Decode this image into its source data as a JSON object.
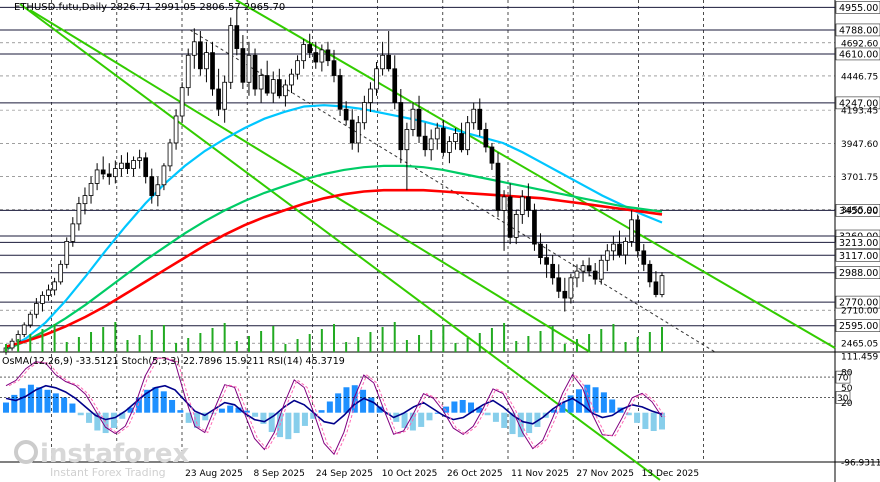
{
  "chart_data": [
    {
      "type": "candlestick",
      "symbol_line": "ETHUSD.futu,Daily  2826.71 2991.05 2806.57 2965.70",
      "x_ticks": [
        "23 Aug 2025",
        "8 Sep 2025",
        "24 Sep 2025",
        "10 Oct 2025",
        "26 Oct 2025",
        "11 Nov 2025",
        "27 Nov 2025",
        "13 Dec 2025"
      ],
      "y_range": [
        2400,
        5010
      ],
      "y_ticks": [
        "4692.60",
        "4446.75",
        "4193.45",
        "3947.60",
        "3701.75",
        "3455.90",
        "2710.00",
        "2465.05"
      ],
      "price_levels": [
        {
          "label": "4955.00",
          "value": 4955
        },
        {
          "label": "4788.00",
          "value": 4788
        },
        {
          "label": "4610.00",
          "value": 4610
        },
        {
          "label": "4247.00",
          "value": 4247
        },
        {
          "label": "3450.00",
          "value": 3450
        },
        {
          "label": "3260.00",
          "value": 3260
        },
        {
          "label": "3213.00",
          "value": 3213
        },
        {
          "label": "3117.00",
          "value": 3117
        },
        {
          "label": "2988.00",
          "value": 2988
        },
        {
          "label": "2770.00",
          "value": 2770
        },
        {
          "label": "2595.00",
          "value": 2595
        }
      ],
      "candles_ohlc": [
        [
          2400,
          2450,
          2380,
          2430
        ],
        [
          2430,
          2500,
          2410,
          2480
        ],
        [
          2480,
          2560,
          2460,
          2530
        ],
        [
          2530,
          2620,
          2510,
          2600
        ],
        [
          2600,
          2700,
          2580,
          2680
        ],
        [
          2680,
          2800,
          2650,
          2760
        ],
        [
          2760,
          2850,
          2700,
          2820
        ],
        [
          2820,
          2900,
          2780,
          2860
        ],
        [
          2860,
          2950,
          2820,
          2920
        ],
        [
          2920,
          3080,
          2900,
          3050
        ],
        [
          3050,
          3250,
          3020,
          3220
        ],
        [
          3220,
          3400,
          3180,
          3350
        ],
        [
          3350,
          3550,
          3300,
          3500
        ],
        [
          3500,
          3620,
          3420,
          3560
        ],
        [
          3560,
          3700,
          3500,
          3650
        ],
        [
          3650,
          3800,
          3600,
          3750
        ],
        [
          3750,
          3850,
          3680,
          3720
        ],
        [
          3720,
          3800,
          3640,
          3700
        ],
        [
          3700,
          3820,
          3650,
          3760
        ],
        [
          3760,
          3860,
          3700,
          3800
        ],
        [
          3800,
          3880,
          3720,
          3760
        ],
        [
          3760,
          3850,
          3700,
          3820
        ],
        [
          3820,
          3900,
          3760,
          3840
        ],
        [
          3840,
          3880,
          3650,
          3700
        ],
        [
          3700,
          3760,
          3500,
          3560
        ],
        [
          3560,
          3700,
          3480,
          3640
        ],
        [
          3640,
          3800,
          3600,
          3780
        ],
        [
          3780,
          3980,
          3740,
          3950
        ],
        [
          3950,
          4200,
          3900,
          4150
        ],
        [
          4150,
          4400,
          4100,
          4360
        ],
        [
          4360,
          4650,
          4300,
          4600
        ],
        [
          4600,
          4800,
          4500,
          4700
        ],
        [
          4700,
          4780,
          4450,
          4500
        ],
        [
          4500,
          4700,
          4400,
          4620
        ],
        [
          4620,
          4700,
          4300,
          4350
        ],
        [
          4350,
          4500,
          4150,
          4200
        ],
        [
          4200,
          4450,
          4100,
          4400
        ],
        [
          4400,
          4880,
          4350,
          4820
        ],
        [
          4820,
          4955,
          4600,
          4650
        ],
        [
          4650,
          4750,
          4350,
          4400
        ],
        [
          4400,
          4700,
          4300,
          4600
        ],
        [
          4600,
          4650,
          4300,
          4350
        ],
        [
          4350,
          4500,
          4250,
          4450
        ],
        [
          4450,
          4560,
          4300,
          4320
        ],
        [
          4320,
          4480,
          4250,
          4420
        ],
        [
          4420,
          4500,
          4280,
          4300
        ],
        [
          4300,
          4420,
          4220,
          4380
        ],
        [
          4380,
          4500,
          4320,
          4460
        ],
        [
          4460,
          4600,
          4420,
          4560
        ],
        [
          4560,
          4720,
          4500,
          4680
        ],
        [
          4680,
          4760,
          4580,
          4620
        ],
        [
          4620,
          4700,
          4500,
          4550
        ],
        [
          4550,
          4680,
          4480,
          4640
        ],
        [
          4640,
          4700,
          4520,
          4560
        ],
        [
          4560,
          4640,
          4400,
          4450
        ],
        [
          4450,
          4500,
          4150,
          4200
        ],
        [
          4200,
          4260,
          4080,
          4120
        ],
        [
          4120,
          4200,
          3900,
          3950
        ],
        [
          3950,
          4150,
          3880,
          4100
        ],
        [
          4100,
          4300,
          4050,
          4250
        ],
        [
          4250,
          4400,
          4180,
          4350
        ],
        [
          4350,
          4550,
          4300,
          4500
        ],
        [
          4500,
          4700,
          4450,
          4600
        ],
        [
          4600,
          4780,
          4480,
          4500
        ],
        [
          4500,
          4600,
          4200,
          4250
        ],
        [
          4250,
          4350,
          3800,
          3900
        ],
        [
          3900,
          4100,
          3600,
          4050
        ],
        [
          4050,
          4250,
          4000,
          4200
        ],
        [
          4200,
          4300,
          3950,
          4000
        ],
        [
          4000,
          4100,
          3850,
          3900
        ],
        [
          3900,
          4050,
          3820,
          3980
        ],
        [
          3980,
          4100,
          3900,
          4060
        ],
        [
          4060,
          4120,
          3850,
          3880
        ],
        [
          3880,
          4000,
          3800,
          3960
        ],
        [
          3960,
          4060,
          3900,
          4020
        ],
        [
          4020,
          4100,
          3880,
          3900
        ],
        [
          3900,
          4150,
          3860,
          4100
        ],
        [
          4100,
          4250,
          4050,
          4200
        ],
        [
          4200,
          4280,
          4000,
          4050
        ],
        [
          4050,
          4100,
          3880,
          3920
        ],
        [
          3920,
          3950,
          3750,
          3800
        ],
        [
          3800,
          3880,
          3400,
          3450
        ],
        [
          3450,
          3600,
          3150,
          3550
        ],
        [
          3550,
          3650,
          3200,
          3250
        ],
        [
          3250,
          3450,
          3200,
          3420
        ],
        [
          3420,
          3600,
          3350,
          3550
        ],
        [
          3550,
          3650,
          3400,
          3450
        ],
        [
          3450,
          3500,
          3150,
          3200
        ],
        [
          3200,
          3280,
          3050,
          3100
        ],
        [
          3100,
          3200,
          2950,
          3050
        ],
        [
          3050,
          3120,
          2900,
          2950
        ],
        [
          2950,
          3050,
          2800,
          2850
        ],
        [
          2850,
          2950,
          2700,
          2800
        ],
        [
          2800,
          2980,
          2760,
          2950
        ],
        [
          2950,
          3050,
          2880,
          3000
        ],
        [
          3000,
          3080,
          2920,
          3040
        ],
        [
          3040,
          3100,
          2960,
          3000
        ],
        [
          3000,
          3060,
          2900,
          2940
        ],
        [
          2940,
          3120,
          2900,
          3080
        ],
        [
          3080,
          3200,
          3000,
          3150
        ],
        [
          3150,
          3260,
          3080,
          3200
        ],
        [
          3200,
          3300,
          3100,
          3120
        ],
        [
          3120,
          3250,
          3050,
          3220
        ],
        [
          3220,
          3450,
          3180,
          3380
        ],
        [
          3380,
          3420,
          3100,
          3150
        ],
        [
          3150,
          3200,
          3000,
          3050
        ],
        [
          3050,
          3080,
          2880,
          2920
        ],
        [
          2920,
          3000,
          2806,
          2826
        ],
        [
          2826,
          2991,
          2806,
          2966
        ]
      ],
      "moving_averages": [
        {
          "color": "#00c6ff",
          "values": [
            2420,
            2500,
            2620,
            2780,
            2960,
            3150,
            3330,
            3500,
            3650,
            3780,
            3890,
            3980,
            4060,
            4130,
            4180,
            4220,
            4230,
            4220,
            4200,
            4170,
            4140,
            4110,
            4070,
            4030,
            3990,
            3950,
            3880,
            3800,
            3720,
            3640,
            3560,
            3490,
            3420,
            3360
          ]
        },
        {
          "color": "#00cc66",
          "values": [
            2420,
            2480,
            2560,
            2650,
            2750,
            2860,
            2970,
            3080,
            3180,
            3280,
            3370,
            3450,
            3520,
            3580,
            3630,
            3680,
            3720,
            3750,
            3770,
            3780,
            3780,
            3770,
            3750,
            3720,
            3690,
            3660,
            3630,
            3600,
            3570,
            3540,
            3510,
            3480,
            3460,
            3440
          ]
        },
        {
          "color": "#ff0000",
          "values": [
            2440,
            2480,
            2530,
            2590,
            2660,
            2740,
            2830,
            2920,
            3010,
            3100,
            3190,
            3270,
            3340,
            3400,
            3450,
            3500,
            3540,
            3570,
            3590,
            3600,
            3600,
            3600,
            3590,
            3580,
            3570,
            3560,
            3550,
            3540,
            3520,
            3500,
            3480,
            3460,
            3440,
            3420
          ]
        }
      ],
      "trend_lines": [
        {
          "color": "#33cc00"
        },
        {
          "color": "#33cc00"
        },
        {
          "color": "#33cc00"
        },
        {
          "color": "#333333",
          "style": "dashed"
        }
      ]
    },
    {
      "type": "oscillator",
      "label": "OsMA(12,26,9) -33.5121  Stoch(5,3,3) 22.7896 15.9211  RSI(14) 45.3719",
      "range": [
        -96.9311,
        111.459
      ],
      "y_ticks": [
        "111.459",
        "80",
        "50",
        "20",
        "-96.9311"
      ],
      "levels": [
        {
          "label": "70",
          "value": 70
        },
        {
          "label": "30",
          "value": 30
        }
      ],
      "osma_colors": {
        "positive": "#1e90ff",
        "negative": "#87ceeb"
      },
      "rsi_color": "#00008b",
      "stoch_colors": {
        "main": "#800080",
        "signal": "#ff69b4"
      },
      "osma_values": [
        20,
        35,
        48,
        55,
        50,
        45,
        38,
        30,
        18,
        -5,
        -20,
        -35,
        -40,
        -30,
        -12,
        10,
        30,
        45,
        50,
        42,
        25,
        5,
        -20,
        -30,
        -15,
        -2,
        8,
        14,
        10,
        4,
        -8,
        -22,
        -38,
        -48,
        -52,
        -40,
        -26,
        -12,
        5,
        22,
        38,
        50,
        54,
        45,
        30,
        12,
        -4,
        -18,
        -30,
        -35,
        -28,
        -15,
        0,
        12,
        22,
        25,
        20,
        10,
        -5,
        -18,
        -30,
        -42,
        -48,
        -40,
        -28,
        -10,
        6,
        20,
        34,
        46,
        55,
        50,
        40,
        26,
        10,
        -5,
        -20,
        -32,
        -36,
        -33
      ],
      "rsi_values": [
        60,
        58,
        62,
        68,
        72,
        70,
        66,
        60,
        52,
        44,
        40,
        42,
        48,
        56,
        64,
        70,
        72,
        68,
        58,
        48,
        44,
        50,
        56,
        54,
        46,
        40,
        38,
        44,
        52,
        58,
        54,
        46,
        38,
        36,
        44,
        54,
        60,
        56,
        48,
        42,
        46,
        52,
        56,
        50,
        44,
        40,
        42,
        48,
        54,
        58,
        52,
        44,
        38,
        36,
        42,
        50,
        56,
        60,
        54,
        46,
        42,
        44,
        50,
        54,
        52,
        48,
        45
      ]
    }
  ],
  "watermark": {
    "brand": "instaforex",
    "tagline": "Instant Forex Trading"
  }
}
